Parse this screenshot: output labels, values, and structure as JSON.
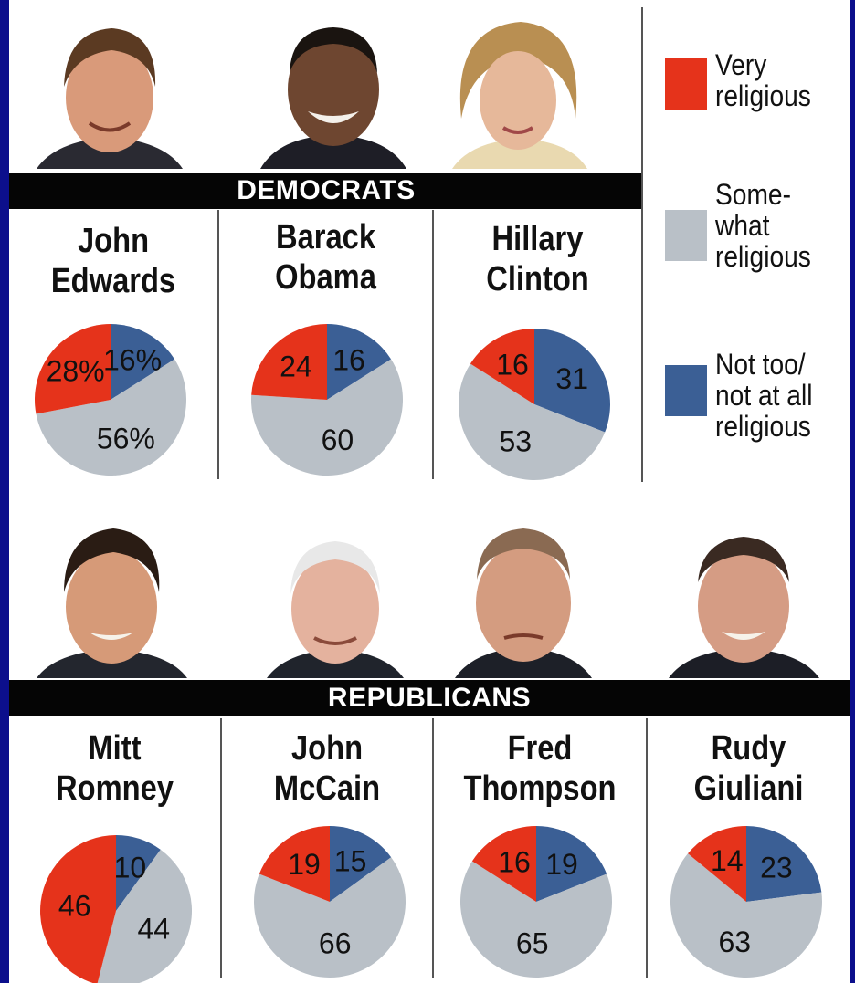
{
  "groups": {
    "democrats_label": "DEMOCRATS",
    "republicans_label": "REPUBLICANS"
  },
  "legend": [
    {
      "lines": [
        "Very",
        "religious"
      ],
      "color": "#e5331b"
    },
    {
      "lines": [
        "Some-",
        "what",
        "religious"
      ],
      "color": "#b9c0c7"
    },
    {
      "lines": [
        "Not too/",
        "not at all",
        "religious"
      ],
      "color": "#3b5f95"
    }
  ],
  "colors": {
    "very": "#e5331b",
    "somewhat": "#b9c0c7",
    "not": "#3b5f95",
    "background": "#0c0f8c",
    "banner": "#050505"
  },
  "chart_data": [
    {
      "type": "pie",
      "group": "Democrats",
      "name_lines": [
        "John",
        "Edwards"
      ],
      "categories": [
        "Very religious",
        "Some-what religious",
        "Not too/not at all religious"
      ],
      "values": [
        28,
        56,
        16
      ],
      "labels": [
        "28%",
        "56%",
        "16%"
      ]
    },
    {
      "type": "pie",
      "group": "Democrats",
      "name_lines": [
        "Barack",
        "Obama"
      ],
      "categories": [
        "Very religious",
        "Some-what religious",
        "Not too/not at all religious"
      ],
      "values": [
        24,
        60,
        16
      ],
      "labels": [
        "24",
        "60",
        "16"
      ]
    },
    {
      "type": "pie",
      "group": "Democrats",
      "name_lines": [
        "Hillary",
        "Clinton"
      ],
      "categories": [
        "Very religious",
        "Some-what religious",
        "Not too/not at all religious"
      ],
      "values": [
        16,
        53,
        31
      ],
      "labels": [
        "16",
        "53",
        "31"
      ]
    },
    {
      "type": "pie",
      "group": "Republicans",
      "name_lines": [
        "Mitt",
        "Romney"
      ],
      "categories": [
        "Very religious",
        "Some-what religious",
        "Not too/not at all religious"
      ],
      "values": [
        46,
        44,
        10
      ],
      "labels": [
        "46",
        "44",
        "10"
      ]
    },
    {
      "type": "pie",
      "group": "Republicans",
      "name_lines": [
        "John",
        "McCain"
      ],
      "categories": [
        "Very religious",
        "Some-what religious",
        "Not too/not at all religious"
      ],
      "values": [
        19,
        66,
        15
      ],
      "labels": [
        "19",
        "66",
        "15"
      ]
    },
    {
      "type": "pie",
      "group": "Republicans",
      "name_lines": [
        "Fred",
        "Thompson"
      ],
      "categories": [
        "Very religious",
        "Some-what religious",
        "Not too/not at all religious"
      ],
      "values": [
        16,
        65,
        19
      ],
      "labels": [
        "16",
        "65",
        "19"
      ]
    },
    {
      "type": "pie",
      "group": "Republicans",
      "name_lines": [
        "Rudy",
        "Giuliani"
      ],
      "categories": [
        "Very religious",
        "Some-what religious",
        "Not too/not at all religious"
      ],
      "values": [
        14,
        63,
        23
      ],
      "labels": [
        "14",
        "63",
        "23"
      ]
    }
  ]
}
